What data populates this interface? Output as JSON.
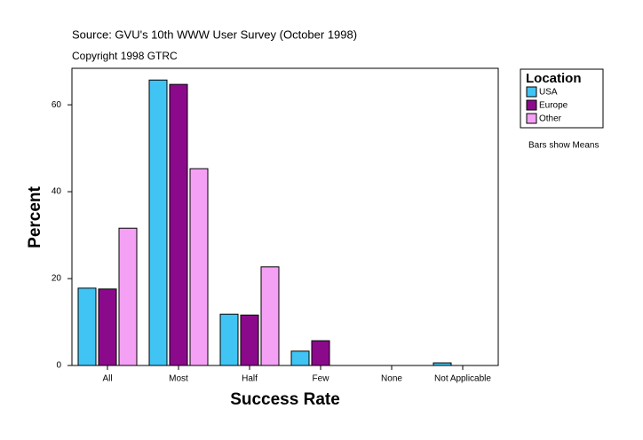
{
  "chart_data": {
    "type": "bar",
    "title": "Source: GVU's 10th WWW User Survey (October 1998)",
    "subtitle": "Copyright 1998 GTRC",
    "x_label": "Success Rate",
    "y_label": "Percent",
    "legend_title": "Location",
    "annotation": "Bars show Means",
    "categories": [
      "All",
      "Most",
      "Half",
      "Few",
      "None",
      "Not Applicable"
    ],
    "series": [
      {
        "name": "USA",
        "color": "#40c4f4",
        "values": [
          17.8,
          65.7,
          11.8,
          3.3,
          null,
          0.6
        ]
      },
      {
        "name": "Europe",
        "color": "#8b0a8b",
        "values": [
          17.6,
          64.7,
          11.6,
          5.7,
          null,
          null
        ]
      },
      {
        "name": "Other",
        "color": "#f4a0f4",
        "values": [
          31.6,
          45.3,
          22.7,
          null,
          null,
          null
        ]
      }
    ],
    "ylim": [
      0,
      68.4
    ],
    "yticks": [
      0,
      20,
      40,
      60
    ],
    "grid": false
  }
}
